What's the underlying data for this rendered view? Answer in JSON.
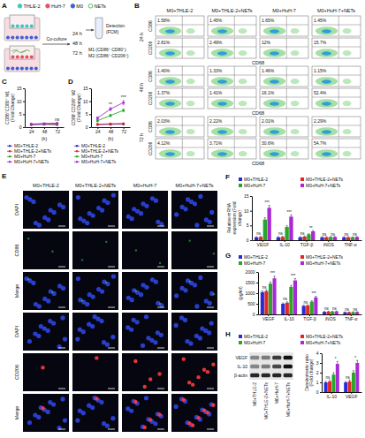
{
  "schematic": {
    "letter": "A",
    "items": [
      "THLE-2",
      "HuH-7",
      "M0",
      "NETs"
    ],
    "step": "Co-culture",
    "times": [
      "24 h",
      "48 h",
      "72 h"
    ],
    "readouts": [
      "M1 (CD86⁺ CD80⁺)",
      "M2 (CD86⁺ CD206⁺)"
    ],
    "detection": "Detection",
    "method": "(FCM)"
  },
  "flow": {
    "letter": "B",
    "columns": [
      "M0+THLE-2",
      "M0+THLE-2+NETs",
      "M0+HuH-7",
      "M0+HuH-7+NETs"
    ],
    "y_labels": [
      "CD86",
      "CD206"
    ],
    "x_label": "CD68",
    "rows": [
      {
        "time": "24 h",
        "gates": [
          [
            "1.58%",
            "1.45%",
            "1.65%",
            "1.45%"
          ],
          [
            "2.81%",
            "2.49%",
            "12%",
            "15.7%"
          ]
        ]
      },
      {
        "time": "48 h",
        "gates": [
          [
            "1.40%",
            "1.33%",
            "1.46%",
            "1.15%"
          ],
          [
            "1.37%",
            "1.41%",
            "16.1%",
            "52.4%"
          ]
        ]
      },
      {
        "time": "72 h",
        "gates": [
          [
            "2.03%",
            "2.22%",
            "2.01%",
            "2.29%"
          ],
          [
            "4.12%",
            "3.71%",
            "30.6%",
            "54.7%"
          ]
        ]
      }
    ]
  },
  "images": {
    "letter": "E",
    "columns": [
      "M0+THLE-2",
      "M0+THLE-2+NETs",
      "M0+HuH-7",
      "M0+HuH-7+NETs"
    ],
    "rows": [
      "DAPI",
      "CD86",
      "Merge",
      "DAPI",
      "CD206",
      "Merge"
    ]
  },
  "blot": {
    "bands": [
      "VEGF",
      "IL-10",
      "β-actin"
    ],
    "lanes": [
      "M0+THLE-2",
      "M0+THLE-2+NETs",
      "M0+HuH-7",
      "M0+HuH-7+NETs"
    ]
  },
  "chart_data": [
    {
      "letter": "C",
      "type": "line",
      "y_label": "CD86⁺CD80⁺ M1 (Fold Change)",
      "x_label": "(h)",
      "x": [
        24,
        48,
        72
      ],
      "xlim": [
        12,
        84
      ],
      "xticks": [
        24,
        48,
        72
      ],
      "ylim": [
        0,
        15
      ],
      "yticks": [
        0,
        5,
        10,
        15
      ],
      "legend": "bottom",
      "series": [
        {
          "name": "M0+THLE-2",
          "color": "#2b2bd6",
          "marker": "circle",
          "values": [
            1,
            1.1,
            1
          ],
          "errors": [
            0.2,
            0.2,
            0.2
          ]
        },
        {
          "name": "M0+THLE-2+NETs",
          "color": "#e32626",
          "marker": "circle",
          "values": [
            1,
            1.2,
            1.1
          ],
          "errors": [
            0.2,
            0.2,
            0.2
          ]
        },
        {
          "name": "M0+HuH-7",
          "color": "#2aa52a",
          "marker": "circle",
          "values": [
            1.1,
            1.3,
            1.4
          ],
          "errors": [
            0.2,
            0.2,
            0.2
          ]
        },
        {
          "name": "M0+HuH-7+NETs",
          "color": "#a82ad6",
          "marker": "circle",
          "values": [
            1.2,
            1.4,
            1.5
          ],
          "errors": [
            0.2,
            0.2,
            0.2
          ]
        }
      ],
      "annotations": [
        {
          "text": "ns",
          "x": 72
        }
      ]
    },
    {
      "letter": "D",
      "type": "line",
      "y_label": "CD86⁺CD206⁺ M2 (Fold Change)",
      "x_label": "(h)",
      "x": [
        24,
        48,
        72
      ],
      "xlim": [
        12,
        84
      ],
      "xticks": [
        24,
        48,
        72
      ],
      "ylim": [
        0,
        15
      ],
      "yticks": [
        0,
        5,
        10,
        15
      ],
      "legend": "bottom",
      "series": [
        {
          "name": "M0+THLE-2",
          "color": "#2b2bd6",
          "marker": "circle",
          "values": [
            1,
            1.1,
            1.2
          ],
          "errors": [
            0.2,
            0.2,
            0.2
          ]
        },
        {
          "name": "M0+THLE-2+NETs",
          "color": "#e32626",
          "marker": "circle",
          "values": [
            1.1,
            1.3,
            1.4
          ],
          "errors": [
            0.2,
            0.2,
            0.2
          ]
        },
        {
          "name": "M0+HuH-7",
          "color": "#2aa52a",
          "marker": "circle",
          "values": [
            2.5,
            4.5,
            6.5
          ],
          "errors": [
            0.4,
            0.5,
            0.6
          ]
        },
        {
          "name": "M0+HuH-7+NETs",
          "color": "#a82ad6",
          "marker": "circle",
          "values": [
            3.5,
            7,
            9.5
          ],
          "errors": [
            0.5,
            0.6,
            0.8
          ]
        }
      ],
      "annotations": [
        {
          "text": "**",
          "x": 48
        },
        {
          "text": "***",
          "x": 72
        }
      ]
    },
    {
      "letter": "F",
      "type": "bar",
      "y_label": "Relative mRNA expression (Fold change)",
      "categories": [
        "VEGF",
        "IL-10",
        "TGF-β",
        "iNOS",
        "TNF-α"
      ],
      "ylim": [
        0,
        15
      ],
      "yticks": [
        0,
        5,
        10,
        15
      ],
      "legend": "top",
      "series": [
        {
          "name": "M0+THLE-2",
          "color": "#2b2bd6",
          "values": [
            1,
            1,
            1,
            1,
            1
          ],
          "errors": [
            0.2,
            0.2,
            0.2,
            0.2,
            0.2
          ]
        },
        {
          "name": "M0+THLE-2+NETs",
          "color": "#e32626",
          "values": [
            1.1,
            1.1,
            1.2,
            1,
            1
          ],
          "errors": [
            0.2,
            0.2,
            0.2,
            0.2,
            0.2
          ]
        },
        {
          "name": "M0+HuH-7",
          "color": "#2aa52a",
          "values": [
            7,
            4.5,
            2,
            1.1,
            1
          ],
          "errors": [
            0.6,
            0.4,
            0.2,
            0.1,
            0.1
          ]
        },
        {
          "name": "M0+HuH-7+NETs",
          "color": "#a82ad6",
          "values": [
            11,
            8,
            3,
            1.1,
            1.1
          ],
          "errors": [
            0.8,
            0.6,
            0.3,
            0.1,
            0.1
          ]
        }
      ],
      "annotations": [
        [
          "ns",
          "***"
        ],
        [
          "ns",
          "***"
        ],
        [
          "ns",
          "**"
        ],
        [
          "ns",
          "ns"
        ],
        [
          "ns",
          "ns"
        ]
      ]
    },
    {
      "letter": "G",
      "type": "bar",
      "y_label": "(pg/ml)",
      "categories": [
        "VEGF",
        "IL-10",
        "TGF-β",
        "iNOS",
        "TNF-α"
      ],
      "ylim": [
        0,
        2000
      ],
      "yticks": [
        0,
        500,
        1000,
        1500,
        2000
      ],
      "legend": "top",
      "series": [
        {
          "name": "M0+THLE-2",
          "color": "#2b2bd6",
          "values": [
            1050,
            500,
            400,
            120,
            100
          ],
          "errors": [
            60,
            40,
            30,
            15,
            10
          ]
        },
        {
          "name": "M0+THLE-2+NETs",
          "color": "#e32626",
          "values": [
            1100,
            550,
            420,
            130,
            100
          ],
          "errors": [
            60,
            40,
            30,
            15,
            10
          ]
        },
        {
          "name": "M0+HuH-7",
          "color": "#2aa52a",
          "values": [
            1450,
            1300,
            600,
            130,
            110
          ],
          "errors": [
            80,
            70,
            40,
            15,
            10
          ]
        },
        {
          "name": "M0+HuH-7+NETs",
          "color": "#a82ad6",
          "values": [
            1700,
            1600,
            800,
            140,
            110
          ],
          "errors": [
            100,
            90,
            50,
            15,
            10
          ]
        }
      ],
      "annotations": [
        [
          "ns",
          "***"
        ],
        [
          "ns",
          "***"
        ],
        [
          "ns",
          "***"
        ],
        [
          "ns",
          "ns"
        ],
        [
          "ns",
          "ns"
        ]
      ]
    },
    {
      "letter": "H",
      "type": "bar",
      "y_label": "Densitometric ratio (Fold change)",
      "categories": [
        "IL-10",
        "VEGF"
      ],
      "ylim": [
        0,
        4
      ],
      "yticks": [
        0,
        1,
        2,
        3,
        4
      ],
      "legend": "top",
      "series": [
        {
          "name": "M0+THLE-2",
          "color": "#2b2bd6",
          "values": [
            1,
            1
          ],
          "errors": [
            0.1,
            0.1
          ]
        },
        {
          "name": "M0+THLE-2+NETs",
          "color": "#e32626",
          "values": [
            1.1,
            1.1
          ],
          "errors": [
            0.15,
            0.15
          ]
        },
        {
          "name": "M0+HuH-7",
          "color": "#2aa52a",
          "values": [
            1.8,
            2
          ],
          "errors": [
            0.2,
            0.2
          ]
        },
        {
          "name": "M0+HuH-7+NETs",
          "color": "#a82ad6",
          "values": [
            2.9,
            3
          ],
          "errors": [
            0.25,
            0.25
          ]
        }
      ],
      "annotations": [
        [
          "ns",
          "*"
        ],
        [
          "ns",
          "*"
        ]
      ]
    }
  ]
}
